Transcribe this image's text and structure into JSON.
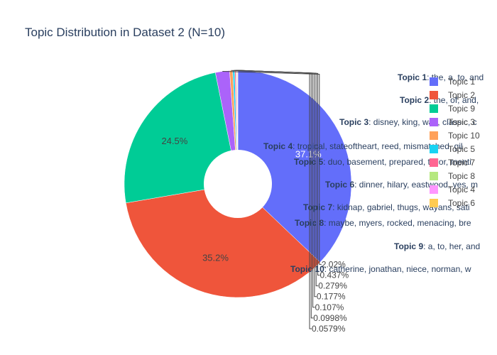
{
  "chart_data": {
    "type": "pie",
    "title": "Topic Distribution in Dataset 2 (N=10)",
    "hole": true,
    "slices": [
      {
        "label": "Topic 1",
        "value": 37.1,
        "text": "37.1%",
        "color": "#636efa"
      },
      {
        "label": "Topic 2",
        "value": 35.2,
        "text": "35.2%",
        "color": "#ef553b"
      },
      {
        "label": "Topic 9",
        "value": 24.5,
        "text": "24.5%",
        "color": "#00cc96"
      },
      {
        "label": "Topic 3",
        "value": 2.02,
        "text": "2.02%",
        "color": "#ab63fa"
      },
      {
        "label": "Topic 10",
        "value": 0.437,
        "text": "0.437%",
        "color": "#ffa15a"
      },
      {
        "label": "Topic 5",
        "value": 0.279,
        "text": "0.279%",
        "color": "#19d3f3"
      },
      {
        "label": "Topic 7",
        "value": 0.177,
        "text": "0.177%",
        "color": "#ff6692"
      },
      {
        "label": "Topic 8",
        "value": 0.107,
        "text": "0.107%",
        "color": "#b6e880"
      },
      {
        "label": "Topic 4",
        "value": 0.0998,
        "text": "0.0998%",
        "color": "#ff97ff"
      },
      {
        "label": "Topic 6",
        "value": 0.0579,
        "text": "0.0579%",
        "color": "#fecb52"
      }
    ],
    "legend_position": "right",
    "annotations": [
      {
        "bold": "Topic 1",
        "text": ": the, a, to, and"
      },
      {
        "bold": "Topic 2",
        "text": ": the, of, and,"
      },
      {
        "bold": "Topic 3",
        "text": ": disney, king, walt, classic, c"
      },
      {
        "bold": "Topic 4",
        "text": ": tropical, stateoftheart, reed, mismatched, gil"
      },
      {
        "bold": "Topic 5",
        "text": ": duo, basement, prepared, tailor, menti"
      },
      {
        "bold": "Topic 6",
        "text": ": dinner, hilary, eastwood, yes, m"
      },
      {
        "bold": "Topic 7",
        "text": ": kidnap, gabriel, thugs, wayans, sati"
      },
      {
        "bold": "Topic 8",
        "text": ": maybe, myers, rocked, menacing, bre"
      },
      {
        "bold": "Topic 9",
        "text": ": a, to, her, and"
      },
      {
        "bold": "Topic 10",
        "text": ": catherine, jonathan, niece, norman, w"
      }
    ]
  }
}
